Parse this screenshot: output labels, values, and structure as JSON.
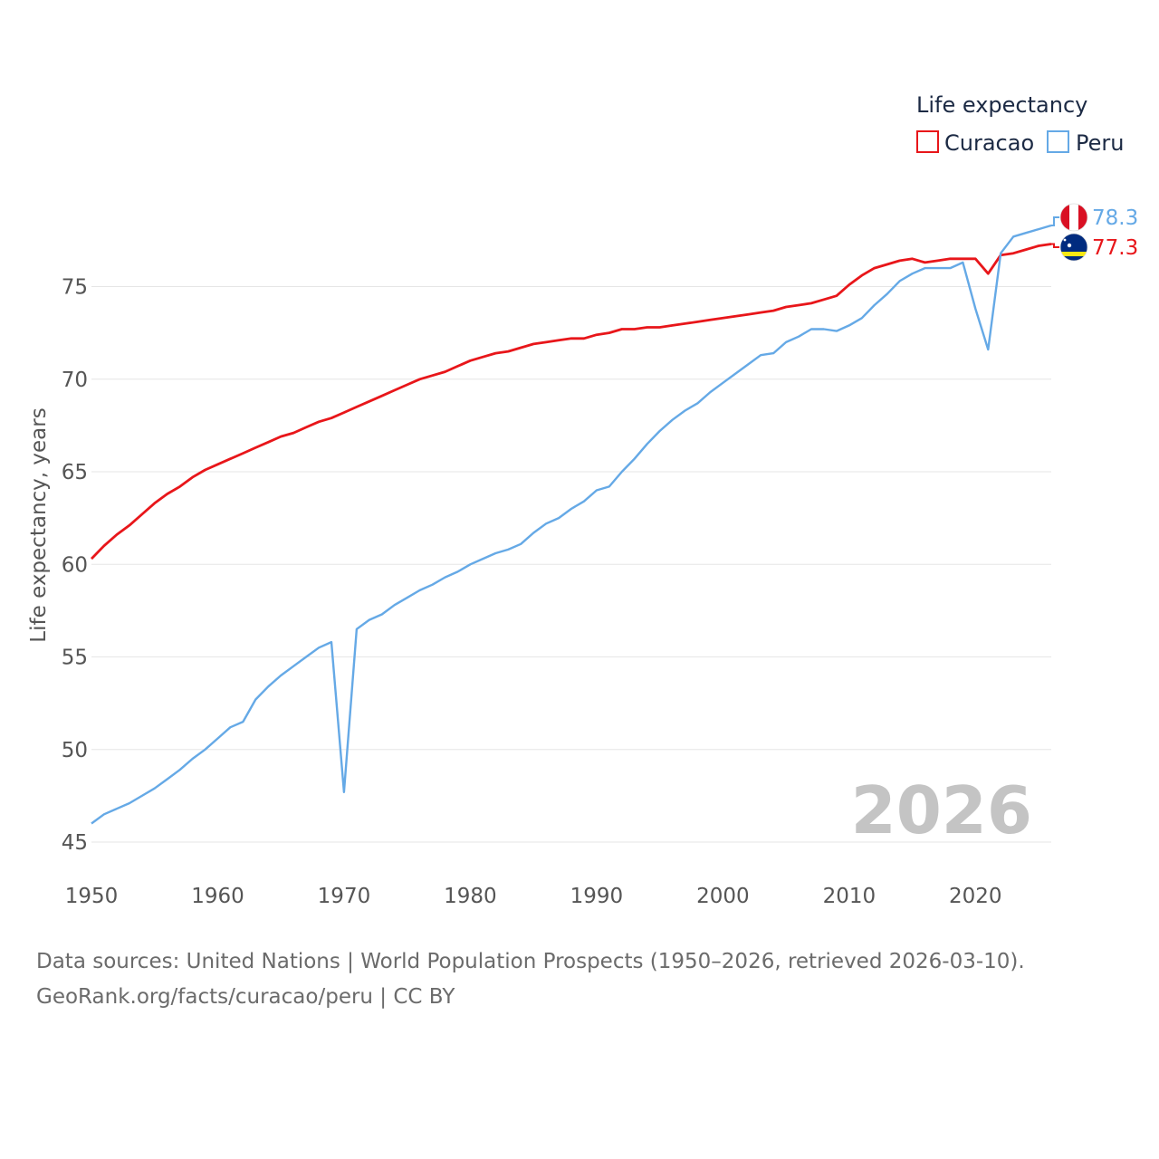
{
  "chart_data": {
    "type": "line",
    "title": "",
    "xlabel": "",
    "ylabel": "Life expectancy, years",
    "xlim": [
      1950,
      2026
    ],
    "ylim": [
      45,
      80
    ],
    "x_ticks": [
      "1950",
      "1960",
      "1970",
      "1980",
      "1990",
      "2000",
      "2010",
      "2020"
    ],
    "y_ticks": [
      "45",
      "50",
      "55",
      "60",
      "65",
      "70",
      "75"
    ],
    "legend_title": "Life expectancy",
    "legend_position": "top-right",
    "current_year": "2026",
    "x": [
      1950,
      1951,
      1952,
      1953,
      1954,
      1955,
      1956,
      1957,
      1958,
      1959,
      1960,
      1961,
      1962,
      1963,
      1964,
      1965,
      1966,
      1967,
      1968,
      1969,
      1970,
      1971,
      1972,
      1973,
      1974,
      1975,
      1976,
      1977,
      1978,
      1979,
      1980,
      1981,
      1982,
      1983,
      1984,
      1985,
      1986,
      1987,
      1988,
      1989,
      1990,
      1991,
      1992,
      1993,
      1994,
      1995,
      1996,
      1997,
      1998,
      1999,
      2000,
      2001,
      2002,
      2003,
      2004,
      2005,
      2006,
      2007,
      2008,
      2009,
      2010,
      2011,
      2012,
      2013,
      2014,
      2015,
      2016,
      2017,
      2018,
      2019,
      2020,
      2021,
      2022,
      2023,
      2024,
      2025,
      2026
    ],
    "series": [
      {
        "name": "Curacao",
        "color": "#e8161a",
        "end_label": "77.3",
        "flag": "curacao-flag",
        "values": [
          60.3,
          61.0,
          61.6,
          62.1,
          62.7,
          63.3,
          63.8,
          64.2,
          64.7,
          65.1,
          65.4,
          65.7,
          66.0,
          66.3,
          66.6,
          66.9,
          67.1,
          67.4,
          67.7,
          67.9,
          68.2,
          68.5,
          68.8,
          69.1,
          69.4,
          69.7,
          70.0,
          70.2,
          70.4,
          70.7,
          71.0,
          71.2,
          71.4,
          71.5,
          71.7,
          71.9,
          72.0,
          72.1,
          72.2,
          72.2,
          72.4,
          72.5,
          72.7,
          72.7,
          72.8,
          72.8,
          72.9,
          73.0,
          73.1,
          73.2,
          73.3,
          73.4,
          73.5,
          73.6,
          73.7,
          73.9,
          74.0,
          74.1,
          74.3,
          74.5,
          75.1,
          75.6,
          76.0,
          76.2,
          76.4,
          76.5,
          76.3,
          76.4,
          76.5,
          76.5,
          76.5,
          75.7,
          76.7,
          76.8,
          77.0,
          77.2,
          77.3
        ]
      },
      {
        "name": "Peru",
        "color": "#65a9e6",
        "end_label": "78.3",
        "flag": "peru-flag",
        "values": [
          46.0,
          46.5,
          46.8,
          47.1,
          47.5,
          47.9,
          48.4,
          48.9,
          49.5,
          50.0,
          50.6,
          51.2,
          51.5,
          52.7,
          53.4,
          54.0,
          54.5,
          55.0,
          55.5,
          55.8,
          47.7,
          56.5,
          57.0,
          57.3,
          57.8,
          58.2,
          58.6,
          58.9,
          59.3,
          59.6,
          60.0,
          60.3,
          60.6,
          60.8,
          61.1,
          61.7,
          62.2,
          62.5,
          63.0,
          63.4,
          64.0,
          64.2,
          65.0,
          65.7,
          66.5,
          67.2,
          67.8,
          68.3,
          68.7,
          69.3,
          69.8,
          70.3,
          70.8,
          71.3,
          71.4,
          72.0,
          72.3,
          72.7,
          72.7,
          72.6,
          72.9,
          73.3,
          74.0,
          74.6,
          75.3,
          75.7,
          76.0,
          76.0,
          76.0,
          76.3,
          73.8,
          71.6,
          76.8,
          77.7,
          77.9,
          78.1,
          78.3
        ]
      }
    ]
  },
  "footer": {
    "source": "Data sources: United Nations | World Population Prospects (1950–2026, retrieved 2026-03-10).",
    "attribution": "GeoRank.org/facts/curacao/peru | CC BY"
  }
}
